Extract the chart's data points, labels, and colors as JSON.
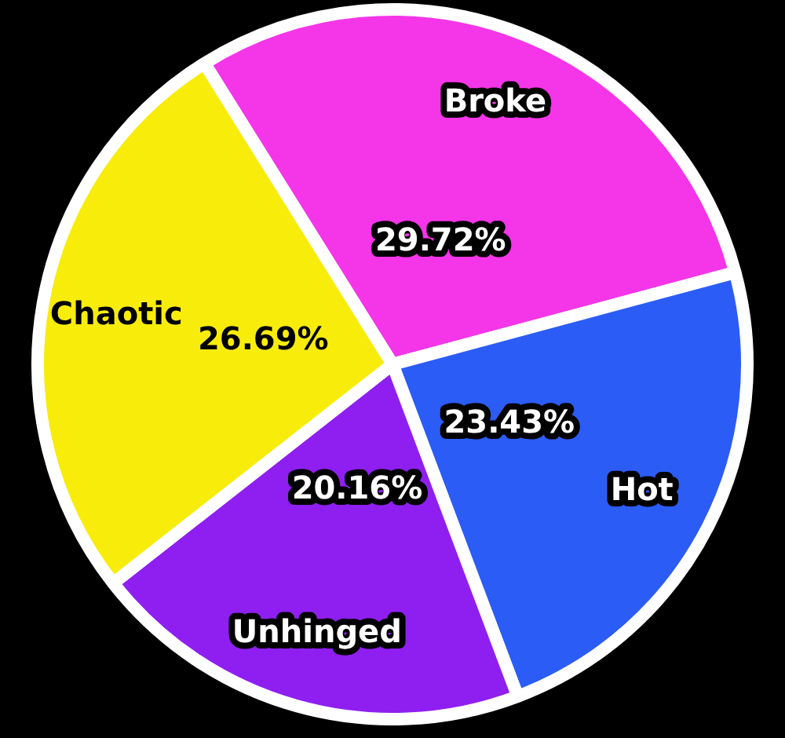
{
  "chart_data": {
    "type": "pie",
    "categories": [
      "Broke",
      "Hot",
      "Unhinged",
      "Chaotic"
    ],
    "values": [
      29.72,
      23.43,
      20.16,
      26.69
    ],
    "colors": [
      "#f535e8",
      "#2b5cf5",
      "#8f1ff0",
      "#f8ec0a"
    ],
    "value_labels": [
      "29.72%",
      "23.43%",
      "20.16%",
      "26.69%"
    ],
    "legend": false
  }
}
